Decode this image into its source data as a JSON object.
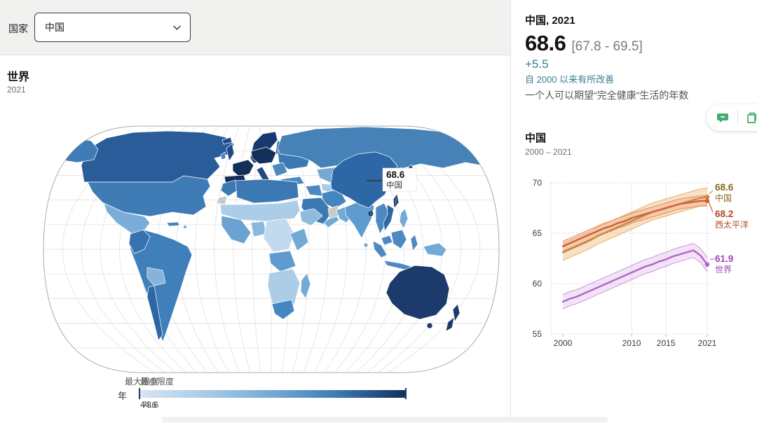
{
  "header": {
    "country_label": "国家",
    "country_value": "中国"
  },
  "map_section": {
    "title": "世界",
    "subtitle": "2021",
    "callout": {
      "value": "68.6",
      "name": "中国"
    },
    "legend": {
      "unit": "年",
      "min_label": "最小限度",
      "max_label": "最大限度",
      "min_value": "44.6",
      "max_value": "73.6",
      "colors": [
        "#d6e5f2",
        "#a9cbe6",
        "#74a9d4",
        "#3c79b3",
        "#12315f"
      ]
    }
  },
  "side_panel": {
    "title": "中国, 2021",
    "value": "68.6",
    "uncertainty": "[67.8 - 69.5]",
    "change": "+5.5",
    "change_note": "自 2000 以来有所改善",
    "description": "一个人可以期望“完全健康”生活的年数",
    "accent_color": "#38808e",
    "icons": [
      "comment-icon",
      "export-icon"
    ],
    "icon_color": "#3fae6e"
  },
  "chart_data": {
    "type": "line",
    "title": "中国",
    "subtitle": "2000 – 2021",
    "x": [
      2000,
      2001,
      2002,
      2003,
      2004,
      2005,
      2006,
      2007,
      2008,
      2009,
      2010,
      2011,
      2012,
      2013,
      2014,
      2015,
      2016,
      2017,
      2018,
      2019,
      2020,
      2021
    ],
    "xticks": [
      2000,
      2010,
      2015,
      2021
    ],
    "grid_xticks": [
      2010,
      2015,
      2021
    ],
    "yticks": [
      55,
      60,
      65,
      70
    ],
    "ylim": [
      55,
      70
    ],
    "grid": "dotted",
    "legend_position": "right-annotations",
    "series": [
      {
        "name": "中国",
        "end_value": "68.6",
        "color": "#bf8c3a",
        "label_color": "#8a691c",
        "band_color": "rgba(238,166,92,0.35)",
        "band_edge": "#e6b163",
        "values": [
          63.1,
          63.4,
          63.7,
          64.0,
          64.3,
          64.7,
          65.0,
          65.3,
          65.6,
          65.9,
          66.2,
          66.5,
          66.8,
          67.1,
          67.3,
          67.5,
          67.7,
          67.9,
          68.1,
          68.3,
          68.5,
          68.6
        ],
        "lower": [
          62.3,
          62.6,
          62.9,
          63.2,
          63.5,
          63.9,
          64.2,
          64.5,
          64.8,
          65.1,
          65.4,
          65.7,
          66.0,
          66.3,
          66.5,
          66.7,
          66.9,
          67.1,
          67.3,
          67.5,
          67.7,
          67.8
        ],
        "upper": [
          64.0,
          64.3,
          64.6,
          64.9,
          65.2,
          65.6,
          65.9,
          66.2,
          66.5,
          66.8,
          67.1,
          67.4,
          67.7,
          68.0,
          68.2,
          68.4,
          68.6,
          68.8,
          69.0,
          69.2,
          69.4,
          69.5
        ]
      },
      {
        "name": "西太平洋",
        "end_value": "68.2",
        "color": "#cd5f3b",
        "label_color": "#b3492a",
        "band_color": "rgba(236,148,102,0.30)",
        "band_edge": "#de8a5e",
        "values": [
          63.7,
          64.0,
          64.3,
          64.6,
          64.9,
          65.2,
          65.5,
          65.7,
          66.0,
          66.2,
          66.5,
          66.7,
          66.9,
          67.1,
          67.3,
          67.5,
          67.7,
          67.9,
          68.0,
          68.1,
          68.2,
          68.2
        ],
        "lower": [
          63.2,
          63.5,
          63.8,
          64.1,
          64.4,
          64.7,
          65.0,
          65.2,
          65.5,
          65.7,
          66.0,
          66.2,
          66.4,
          66.6,
          66.8,
          67.0,
          67.2,
          67.4,
          67.5,
          67.6,
          67.7,
          67.7
        ],
        "upper": [
          64.2,
          64.5,
          64.8,
          65.1,
          65.4,
          65.7,
          66.0,
          66.2,
          66.5,
          66.7,
          67.0,
          67.2,
          67.4,
          67.6,
          67.8,
          68.0,
          68.2,
          68.4,
          68.5,
          68.6,
          68.7,
          68.7
        ]
      },
      {
        "name": "世界",
        "end_value": "61.9",
        "color": "#b364c8",
        "label_color": "#a645bd",
        "band_color": "rgba(203,142,218,0.25)",
        "band_edge": "#cf96de",
        "values": [
          58.2,
          58.5,
          58.7,
          59.0,
          59.3,
          59.6,
          59.9,
          60.2,
          60.5,
          60.8,
          61.1,
          61.4,
          61.7,
          61.9,
          62.2,
          62.4,
          62.7,
          62.9,
          63.1,
          63.3,
          62.8,
          61.9
        ],
        "lower": [
          57.5,
          57.8,
          58.0,
          58.3,
          58.6,
          58.9,
          59.2,
          59.5,
          59.8,
          60.1,
          60.4,
          60.7,
          61.0,
          61.2,
          61.5,
          61.7,
          62.0,
          62.2,
          62.4,
          62.6,
          62.1,
          61.2
        ],
        "upper": [
          58.9,
          59.2,
          59.4,
          59.7,
          60.0,
          60.3,
          60.6,
          60.9,
          61.2,
          61.5,
          61.8,
          62.1,
          62.4,
          62.6,
          62.9,
          63.1,
          63.4,
          63.6,
          63.8,
          64.0,
          63.5,
          62.6
        ]
      }
    ]
  }
}
